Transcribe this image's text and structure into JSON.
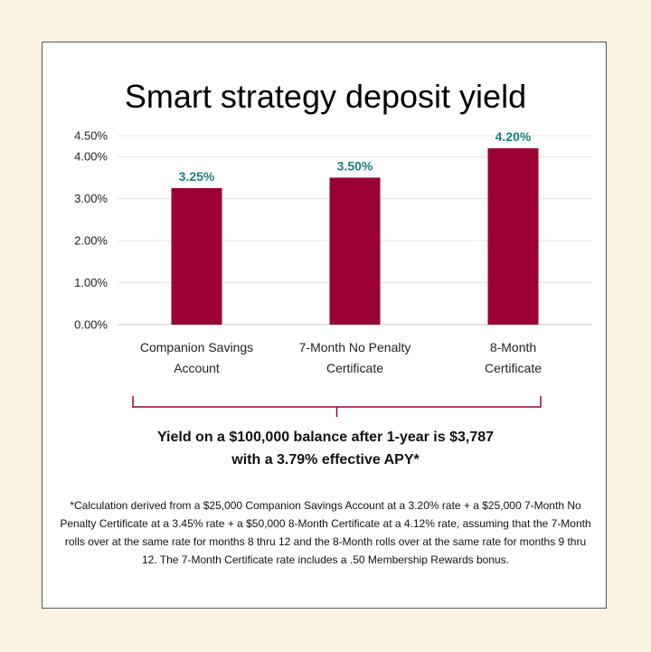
{
  "title": "Smart strategy deposit yield",
  "summary": {
    "line1": "Yield on a $100,000 balance after 1-year is $3,787",
    "line2": "with a 3.79% effective APY*"
  },
  "footnote": "*Calculation derived from a $25,000 Companion Savings Account at a 3.20% rate + a $25,000 7-Month No Penalty Certificate at a 3.45% rate + a $50,000 8-Month Certificate at a 4.12% rate, assuming that the 7-Month rolls over at the same rate for months 8 thru 12 and the 8-Month rolls over at the same rate for months 9 thru 12. The 7-Month Certificate rate includes a .50 Membership Rewards bonus.",
  "colors": {
    "background": "#fdf3e1",
    "bar": "#9b0033",
    "data_label": "#1a7f80",
    "bracket": "#9b0033"
  },
  "chart_data": {
    "type": "bar",
    "title": "Smart strategy deposit yield",
    "categories": [
      [
        "Companion Savings",
        "Account"
      ],
      [
        "7-Month No Penalty",
        "Certificate"
      ],
      [
        "8-Month",
        "Certificate"
      ]
    ],
    "values": [
      3.25,
      3.5,
      4.2
    ],
    "data_labels": [
      "3.25%",
      "3.50%",
      "4.20%"
    ],
    "ylim": [
      0,
      4.5
    ],
    "yticks": [
      0,
      1,
      2,
      3,
      4,
      4.5
    ],
    "ytick_labels": [
      "0.00%",
      "1.00%",
      "2.00%",
      "3.00%",
      "4.00%",
      "4.50%"
    ],
    "xlabel": "",
    "ylabel": "",
    "grid": true,
    "legend": "none"
  }
}
